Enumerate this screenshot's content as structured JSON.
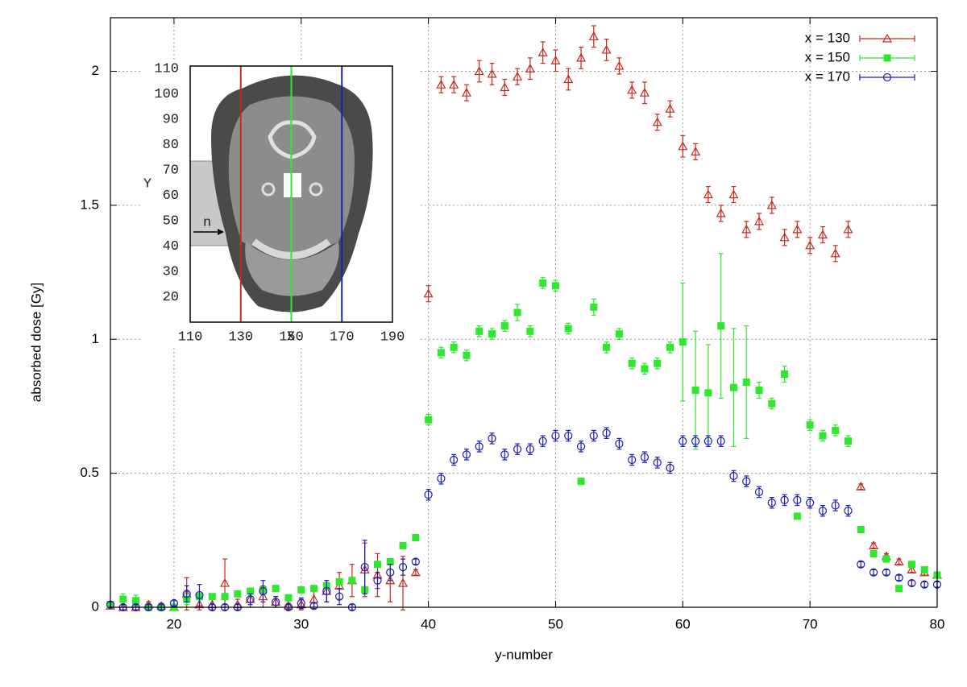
{
  "chart_data": {
    "type": "scatter",
    "xlabel": "y-number",
    "ylabel": "absorbed dose [Gy]",
    "xlim": [
      15,
      80
    ],
    "ylim": [
      0,
      2.2
    ],
    "xticks": [
      20,
      30,
      40,
      50,
      60,
      70,
      80
    ],
    "yticks": [
      0,
      0.5,
      1,
      1.5,
      2
    ],
    "grid": true,
    "legend": "upper right",
    "x": [
      15,
      16,
      17,
      18,
      19,
      20,
      21,
      22,
      23,
      24,
      25,
      26,
      27,
      28,
      29,
      30,
      31,
      32,
      33,
      34,
      35,
      36,
      37,
      38,
      39,
      40,
      41,
      42,
      43,
      44,
      45,
      46,
      47,
      48,
      49,
      50,
      51,
      52,
      53,
      54,
      55,
      56,
      57,
      58,
      59,
      60,
      61,
      62,
      63,
      64,
      65,
      66,
      67,
      68,
      69,
      70,
      71,
      72,
      73,
      74,
      75,
      76,
      77,
      78,
      79,
      80
    ],
    "series": [
      {
        "name": "x = 130",
        "color": "#c8281e",
        "marker": "triangle",
        "values": [
          0.005,
          0,
          0,
          0.01,
          0.005,
          0,
          0.05,
          0.01,
          0.01,
          0.09,
          0.01,
          0.03,
          0.04,
          0.02,
          0.005,
          0.01,
          0.03,
          0.06,
          0.08,
          0.1,
          0.14,
          0.12,
          0.1,
          0.09,
          0.13,
          1.17,
          1.95,
          1.95,
          1.92,
          2.0,
          1.99,
          1.94,
          1.98,
          2.01,
          2.07,
          2.04,
          1.97,
          2.05,
          2.13,
          2.08,
          2.02,
          1.93,
          1.92,
          1.81,
          1.86,
          1.72,
          1.7,
          1.54,
          1.47,
          1.54,
          1.41,
          1.44,
          1.5,
          1.38,
          1.41,
          1.35,
          1.39,
          1.32,
          1.41,
          0.45,
          0.23,
          0.19,
          0.17,
          0.14,
          0.13,
          0.12
        ],
        "errors": [
          0.01,
          0.01,
          0.01,
          0.01,
          0.01,
          0.01,
          0.06,
          0.02,
          0.02,
          0.09,
          0.02,
          0.03,
          0.04,
          0.02,
          0.01,
          0.02,
          0.03,
          0.04,
          0.05,
          0.06,
          0.1,
          0.08,
          0.08,
          0.1,
          0.01,
          0.03,
          0.03,
          0.03,
          0.03,
          0.04,
          0.04,
          0.03,
          0.03,
          0.04,
          0.04,
          0.04,
          0.04,
          0.04,
          0.04,
          0.04,
          0.03,
          0.03,
          0.04,
          0.03,
          0.03,
          0.04,
          0.03,
          0.03,
          0.03,
          0.03,
          0.03,
          0.03,
          0.03,
          0.03,
          0.03,
          0.03,
          0.03,
          0.03,
          0.03,
          0.01,
          0.01,
          0.01,
          0.01,
          0.01,
          0.01,
          0.01
        ]
      },
      {
        "name": "x = 150",
        "color": "#2ee82e",
        "marker": "square",
        "values": [
          0.01,
          0.03,
          0.025,
          0,
          0,
          0,
          0.03,
          0.04,
          0.04,
          0.04,
          0.05,
          0.06,
          0.065,
          0.07,
          0.035,
          0.065,
          0.07,
          0.08,
          0.095,
          0.1,
          0.065,
          0.16,
          0.17,
          0.23,
          0.26,
          0.7,
          0.95,
          0.97,
          0.94,
          1.03,
          1.02,
          1.05,
          1.1,
          1.03,
          1.21,
          1.2,
          1.04,
          0.47,
          1.12,
          0.97,
          1.02,
          0.91,
          0.89,
          0.91,
          0.97,
          0.99,
          0.81,
          0.8,
          1.05,
          0.82,
          0.84,
          0.81,
          0.76,
          0.87,
          0.34,
          0.68,
          0.64,
          0.66,
          0.62,
          0.29,
          0.2,
          0.18,
          0.07,
          0.16,
          0.14,
          0.12
        ],
        "errors": [
          0.01,
          0.02,
          0.02,
          0.01,
          0.01,
          0.01,
          0.02,
          0.01,
          0.01,
          0.01,
          0.01,
          0.01,
          0.01,
          0.01,
          0.01,
          0.01,
          0.01,
          0.01,
          0.01,
          0.01,
          0.01,
          0.01,
          0.01,
          0.01,
          0.01,
          0.02,
          0.02,
          0.02,
          0.02,
          0.02,
          0.02,
          0.02,
          0.03,
          0.02,
          0.02,
          0.02,
          0.02,
          0.01,
          0.03,
          0.02,
          0.02,
          0.02,
          0.02,
          0.02,
          0.02,
          0.22,
          0.22,
          0.18,
          0.27,
          0.22,
          0.21,
          0.03,
          0.02,
          0.03,
          0.01,
          0.02,
          0.02,
          0.02,
          0.02,
          0.01,
          0.01,
          0.01,
          0.01,
          0.01,
          0.01,
          0.01
        ]
      },
      {
        "name": "x = 170",
        "color": "#1e1eb4",
        "marker": "circle",
        "values": [
          0.01,
          0,
          0,
          0,
          0,
          0.015,
          0.05,
          0.045,
          0,
          0,
          0,
          0.03,
          0.06,
          0.02,
          0,
          0.015,
          0.005,
          0.06,
          0.04,
          0,
          0.15,
          0.1,
          0.13,
          0.15,
          0.17,
          0.42,
          0.48,
          0.55,
          0.57,
          0.6,
          0.63,
          0.57,
          0.59,
          0.59,
          0.62,
          0.64,
          0.64,
          0.6,
          0.64,
          0.65,
          0.61,
          0.55,
          0.56,
          0.54,
          0.52,
          0.62,
          0.62,
          0.62,
          0.62,
          0.49,
          0.47,
          0.43,
          0.39,
          0.4,
          0.4,
          0.39,
          0.36,
          0.38,
          0.36,
          0.16,
          0.13,
          0.13,
          0.11,
          0.09,
          0.085,
          0.085
        ],
        "errors": [
          0.01,
          0.01,
          0.01,
          0.01,
          0.01,
          0.01,
          0.03,
          0.04,
          0.01,
          0.01,
          0.01,
          0.02,
          0.04,
          0.02,
          0.01,
          0.02,
          0.01,
          0.04,
          0.03,
          0.01,
          0.1,
          0.03,
          0.03,
          0.03,
          0.01,
          0.02,
          0.02,
          0.02,
          0.02,
          0.02,
          0.02,
          0.02,
          0.02,
          0.02,
          0.02,
          0.02,
          0.02,
          0.02,
          0.02,
          0.02,
          0.02,
          0.02,
          0.02,
          0.02,
          0.02,
          0.02,
          0.02,
          0.02,
          0.02,
          0.02,
          0.02,
          0.02,
          0.02,
          0.02,
          0.02,
          0.02,
          0.02,
          0.02,
          0.02,
          0.01,
          0.01,
          0.01,
          0.01,
          0.01,
          0.01,
          0.01
        ]
      }
    ],
    "inset": {
      "xlabel": "X",
      "ylabel": "Y",
      "arrow_label": "n",
      "xlim": [
        110,
        190
      ],
      "ylim": [
        10,
        111
      ],
      "xticks": [
        110,
        130,
        150,
        170,
        190
      ],
      "yticks": [
        20,
        30,
        40,
        50,
        60,
        70,
        80,
        90,
        100,
        110
      ],
      "lines": [
        130,
        150,
        170
      ]
    }
  }
}
